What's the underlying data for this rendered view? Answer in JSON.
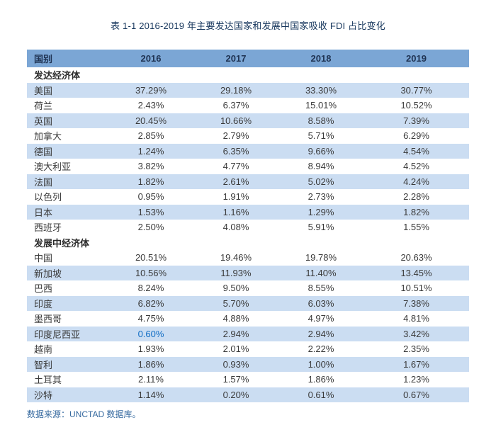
{
  "title": "表 1-1 2016-2019 年主要发达国家和发展中国家吸收 FDI 占比变化",
  "source_note": "数据来源：UNCTAD 数据库。",
  "colors": {
    "header_bg": "#7BA6D5",
    "header_text": "#1F3353",
    "stripe_bg": "#CBDDF2",
    "title_text": "#16365C",
    "body_text": "#3A3A3A",
    "highlight_text": "#0F6CC4",
    "note_text": "#35699F"
  },
  "chart_data": {
    "type": "table",
    "columns": [
      "国别",
      "2016",
      "2017",
      "2018",
      "2019"
    ],
    "sections": [
      {
        "label": "发达经济体",
        "rows": [
          {
            "country": "美国",
            "values": [
              "37.29%",
              "29.18%",
              "33.30%",
              "30.77%"
            ]
          },
          {
            "country": "荷兰",
            "values": [
              "2.43%",
              "6.37%",
              "15.01%",
              "10.52%"
            ]
          },
          {
            "country": "英国",
            "values": [
              "20.45%",
              "10.66%",
              "8.58%",
              "7.39%"
            ]
          },
          {
            "country": "加拿大",
            "values": [
              "2.85%",
              "2.79%",
              "5.71%",
              "6.29%"
            ]
          },
          {
            "country": "德国",
            "values": [
              "1.24%",
              "6.35%",
              "9.66%",
              "4.54%"
            ]
          },
          {
            "country": "澳大利亚",
            "values": [
              "3.82%",
              "4.77%",
              "8.94%",
              "4.52%"
            ]
          },
          {
            "country": "法国",
            "values": [
              "1.82%",
              "2.61%",
              "5.02%",
              "4.24%"
            ]
          },
          {
            "country": "以色列",
            "values": [
              "0.95%",
              "1.91%",
              "2.73%",
              "2.28%"
            ]
          },
          {
            "country": "日本",
            "values": [
              "1.53%",
              "1.16%",
              "1.29%",
              "1.82%"
            ]
          },
          {
            "country": "西班牙",
            "values": [
              "2.50%",
              "4.08%",
              "5.91%",
              "1.55%"
            ]
          }
        ]
      },
      {
        "label": "发展中经济体",
        "rows": [
          {
            "country": "中国",
            "values": [
              "20.51%",
              "19.46%",
              "19.78%",
              "20.63%"
            ]
          },
          {
            "country": "新加坡",
            "values": [
              "10.56%",
              "11.93%",
              "11.40%",
              "13.45%"
            ]
          },
          {
            "country": "巴西",
            "values": [
              "8.24%",
              "9.50%",
              "8.55%",
              "10.51%"
            ]
          },
          {
            "country": "印度",
            "values": [
              "6.82%",
              "5.70%",
              "6.03%",
              "7.38%"
            ]
          },
          {
            "country": "墨西哥",
            "values": [
              "4.75%",
              "4.88%",
              "4.97%",
              "4.81%"
            ]
          },
          {
            "country": "印度尼西亚",
            "values": [
              "0.60%",
              "2.94%",
              "2.94%",
              "3.42%"
            ],
            "highlight_col": 0
          },
          {
            "country": "越南",
            "values": [
              "1.93%",
              "2.01%",
              "2.22%",
              "2.35%"
            ]
          },
          {
            "country": "智利",
            "values": [
              "1.86%",
              "0.93%",
              "1.00%",
              "1.67%"
            ]
          },
          {
            "country": "土耳其",
            "values": [
              "2.11%",
              "1.57%",
              "1.86%",
              "1.23%"
            ]
          },
          {
            "country": "沙特",
            "values": [
              "1.14%",
              "0.20%",
              "0.61%",
              "0.67%"
            ]
          }
        ]
      }
    ]
  }
}
